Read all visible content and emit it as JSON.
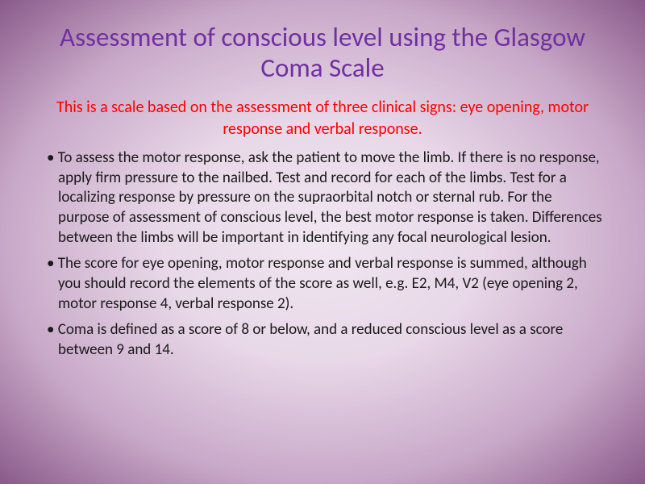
{
  "colors": {
    "title": "#7030a0",
    "subtitle": "#ff0000",
    "body": "#1a1a1a",
    "bg_center": "#f0e6f0",
    "bg_mid": "#e8d8e8",
    "bg_outer": "#8a5a8a"
  },
  "typography": {
    "title_fontsize": 33,
    "subtitle_fontsize": 20,
    "body_fontsize": 19,
    "font_family": "Segoe UI / Calibri Light",
    "font_weight": 300
  },
  "title": "Assessment of conscious level using the Glasgow Coma Scale",
  "subtitle": "This is a scale based on the assessment of three clinical signs: eye opening, motor response and verbal response.",
  "bullets": [
    "To assess the motor response, ask the patient to move the limb. If there is no response, apply firm pressure to the nailbed. Test and record for each of the limbs. Test for a localizing response by pressure on the supraorbital notch or sternal rub. For the purpose of assessment of conscious level, the best motor response is taken. Differences between the limbs will be important in identifying any focal neurological lesion.",
    "The score for eye opening, motor response and verbal response is summed, although you should record the elements of the score as well, e.g. E2, M4, V2 (eye opening 2, motor response 4, verbal response 2).",
    "Coma is defined as a score of 8 or below, and a reduced conscious level as a score between 9 and 14."
  ]
}
